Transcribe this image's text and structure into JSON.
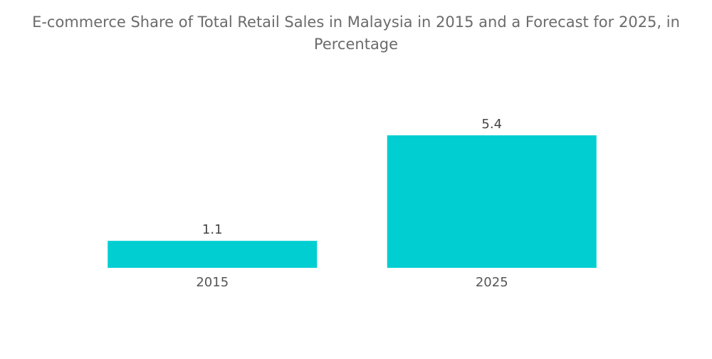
{
  "chart_data": {
    "type": "bar",
    "title": "E-commerce Share of Total Retail Sales in Malaysia in 2015 and a Forecast for 2025, in Percentage",
    "categories": [
      "2015",
      "2025"
    ],
    "values": [
      1.1,
      5.4
    ],
    "value_labels": [
      "1.1",
      "5.4"
    ],
    "xlabel": "",
    "ylabel": "",
    "ylim": [
      0,
      5.4
    ],
    "grid": false,
    "legend": "none",
    "bar_color": "#00CED1"
  }
}
